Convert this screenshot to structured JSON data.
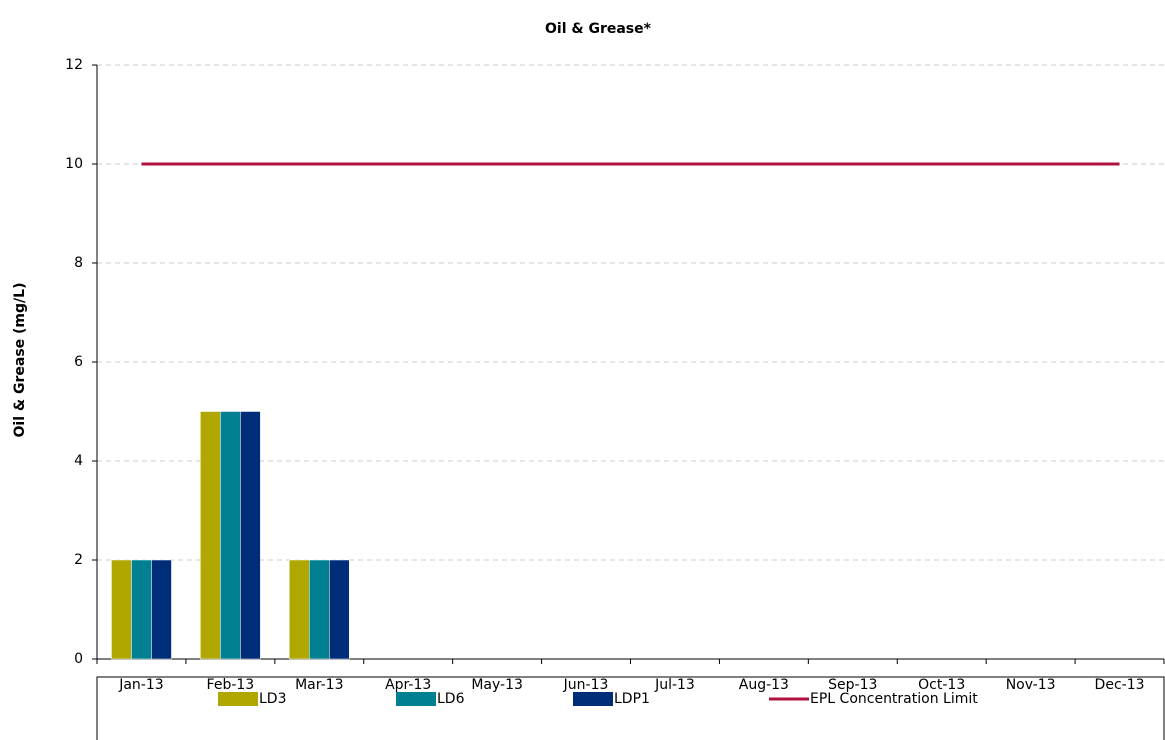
{
  "chart_data": {
    "type": "bar",
    "title": "Oil & Grease*",
    "y_label": "Oil & Grease (mg/L)",
    "categories": [
      "Jan-13",
      "Feb-13",
      "Mar-13",
      "Apr-13",
      "May-13",
      "Jun-13",
      "Jul-13",
      "Aug-13",
      "Sep-13",
      "Oct-13",
      "Nov-13",
      "Dec-13"
    ],
    "series": [
      {
        "name": "LD3",
        "type": "bar",
        "color": "#b0a800",
        "values": [
          2,
          5,
          2,
          null,
          null,
          null,
          null,
          null,
          null,
          null,
          null,
          null
        ]
      },
      {
        "name": "LD6",
        "type": "bar",
        "color": "#008090",
        "values": [
          2,
          5,
          2,
          null,
          null,
          null,
          null,
          null,
          null,
          null,
          null,
          null
        ]
      },
      {
        "name": "LDP1",
        "type": "bar",
        "color": "#002d78",
        "values": [
          2,
          5,
          2,
          null,
          null,
          null,
          null,
          null,
          null,
          null,
          null,
          null
        ]
      },
      {
        "name": "EPL Concentration Limit",
        "type": "line",
        "color": "#b0123f",
        "values": [
          10,
          10,
          10,
          10,
          10,
          10,
          10,
          10,
          10,
          10,
          10,
          10
        ]
      }
    ],
    "ylim": [
      0,
      12
    ],
    "yticks": [
      0,
      2,
      4,
      6,
      8,
      10,
      12
    ],
    "grid": true,
    "legend": "bottom"
  }
}
